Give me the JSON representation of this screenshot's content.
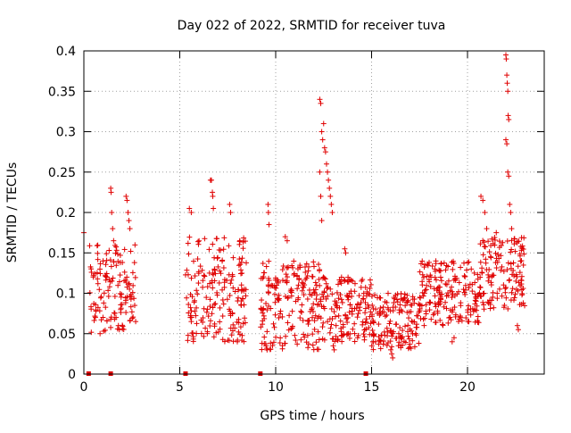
{
  "chart_data": {
    "type": "scatter",
    "title": "Day 022 of 2022, SRMTID for receiver tuva",
    "xlabel": "GPS time / hours",
    "ylabel": "SRMTID / TECUs",
    "xlim": [
      0,
      24
    ],
    "ylim": [
      0,
      0.4
    ],
    "x_ticks": [
      0,
      5,
      10,
      15,
      20
    ],
    "x_tick_labels": [
      "0",
      "5",
      "10",
      "15",
      "20"
    ],
    "y_ticks": [
      0,
      0.05,
      0.1,
      0.15,
      0.2,
      0.25,
      0.3,
      0.35,
      0.4
    ],
    "y_tick_labels": [
      "0",
      "0.05",
      "0.1",
      "0.15",
      "0.2",
      "0.25",
      "0.3",
      "0.35",
      "0.4"
    ],
    "grid": true,
    "series": [
      {
        "name": "SRMTID",
        "color": "#e00000",
        "marker": "plus",
        "segments": [
          {
            "x0": 0.25,
            "x1": 2.7,
            "y_lo": 0.05,
            "y_hi": 0.16,
            "n": 130
          },
          {
            "x0": 5.3,
            "x1": 8.5,
            "y_lo": 0.04,
            "y_hi": 0.17,
            "n": 190
          },
          {
            "x0": 9.2,
            "x1": 12.4,
            "y_lo": 0.03,
            "y_hi": 0.14,
            "n": 200
          },
          {
            "x0": 12.4,
            "x1": 15.0,
            "y_lo": 0.04,
            "y_hi": 0.12,
            "n": 150
          },
          {
            "x0": 15.0,
            "x1": 17.5,
            "y_lo": 0.03,
            "y_hi": 0.1,
            "n": 150
          },
          {
            "x0": 17.5,
            "x1": 20.6,
            "y_lo": 0.06,
            "y_hi": 0.14,
            "n": 180
          },
          {
            "x0": 20.6,
            "x1": 23.0,
            "y_lo": 0.08,
            "y_hi": 0.17,
            "n": 140
          }
        ],
        "points": [
          [
            0.0,
            0.175
          ],
          [
            1.0,
            0.14
          ],
          [
            1.2,
            0.12
          ],
          [
            1.4,
            0.23
          ],
          [
            1.42,
            0.225
          ],
          [
            1.45,
            0.2
          ],
          [
            1.5,
            0.18
          ],
          [
            1.55,
            0.165
          ],
          [
            1.8,
            0.06
          ],
          [
            1.85,
            0.055
          ],
          [
            2.2,
            0.22
          ],
          [
            2.25,
            0.215
          ],
          [
            2.3,
            0.2
          ],
          [
            2.35,
            0.19
          ],
          [
            2.4,
            0.18
          ],
          [
            2.65,
            0.085
          ],
          [
            2.7,
            0.065
          ],
          [
            5.5,
            0.205
          ],
          [
            5.6,
            0.2
          ],
          [
            5.55,
            0.07
          ],
          [
            5.6,
            0.065
          ],
          [
            6.6,
            0.24
          ],
          [
            6.65,
            0.24
          ],
          [
            6.7,
            0.225
          ],
          [
            6.72,
            0.22
          ],
          [
            6.75,
            0.205
          ],
          [
            7.6,
            0.21
          ],
          [
            7.65,
            0.2
          ],
          [
            8.0,
            0.04
          ],
          [
            9.5,
            0.035
          ],
          [
            9.55,
            0.03
          ],
          [
            9.6,
            0.21
          ],
          [
            9.62,
            0.2
          ],
          [
            9.65,
            0.185
          ],
          [
            10.5,
            0.17
          ],
          [
            10.6,
            0.165
          ],
          [
            12.3,
            0.34
          ],
          [
            12.35,
            0.335
          ],
          [
            12.4,
            0.3
          ],
          [
            12.45,
            0.29
          ],
          [
            12.5,
            0.31
          ],
          [
            12.55,
            0.28
          ],
          [
            12.6,
            0.275
          ],
          [
            12.65,
            0.26
          ],
          [
            12.7,
            0.25
          ],
          [
            12.75,
            0.24
          ],
          [
            12.8,
            0.23
          ],
          [
            12.85,
            0.22
          ],
          [
            12.9,
            0.21
          ],
          [
            12.95,
            0.2
          ],
          [
            12.3,
            0.25
          ],
          [
            12.35,
            0.22
          ],
          [
            12.4,
            0.19
          ],
          [
            13.0,
            0.035
          ],
          [
            13.05,
            0.03
          ],
          [
            13.6,
            0.155
          ],
          [
            13.65,
            0.15
          ],
          [
            15.2,
            0.04
          ],
          [
            16.0,
            0.03
          ],
          [
            16.05,
            0.025
          ],
          [
            16.1,
            0.02
          ],
          [
            18.3,
            0.13
          ],
          [
            18.35,
            0.14
          ],
          [
            19.2,
            0.04
          ],
          [
            19.3,
            0.045
          ],
          [
            20.7,
            0.22
          ],
          [
            20.8,
            0.215
          ],
          [
            20.9,
            0.2
          ],
          [
            21.0,
            0.18
          ],
          [
            21.5,
            0.175
          ],
          [
            22.0,
            0.395
          ],
          [
            22.02,
            0.39
          ],
          [
            22.05,
            0.37
          ],
          [
            22.07,
            0.36
          ],
          [
            22.1,
            0.35
          ],
          [
            22.12,
            0.32
          ],
          [
            22.15,
            0.315
          ],
          [
            22.0,
            0.29
          ],
          [
            22.05,
            0.285
          ],
          [
            22.1,
            0.25
          ],
          [
            22.15,
            0.245
          ],
          [
            22.2,
            0.21
          ],
          [
            22.25,
            0.2
          ],
          [
            22.3,
            0.18
          ],
          [
            22.6,
            0.06
          ],
          [
            22.65,
            0.055
          ],
          [
            0.25,
            0.0
          ],
          [
            1.4,
            0.0
          ],
          [
            5.3,
            0.0
          ],
          [
            9.2,
            0.0
          ],
          [
            14.7,
            0.0
          ]
        ]
      }
    ]
  }
}
